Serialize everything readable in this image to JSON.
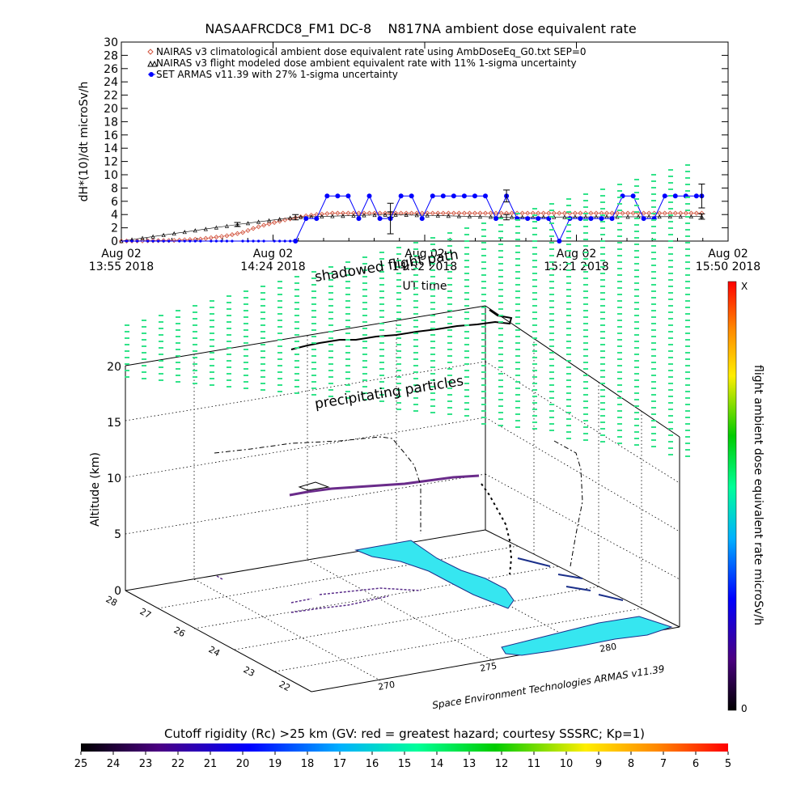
{
  "colors": {
    "nairas_clim": "#d2523c",
    "nairas_flight": "#000000",
    "armas": "#0000ff",
    "precip": "#33e38a",
    "ocean": "#36e6f0",
    "land_outline": "#1a2f8a"
  },
  "chart_data": [
    {
      "type": "line",
      "title": "NASAAFRCDC8_FM1 DC-8    N817NA ambient dose equivalent rate",
      "xlabel": "UT time",
      "ylabel": "dH*(10)/dt microSv/h",
      "ylim": [
        0,
        30
      ],
      "yticks": [
        "0",
        "2",
        "4",
        "6",
        "8",
        "10",
        "12",
        "14",
        "16",
        "18",
        "20",
        "22",
        "24",
        "26",
        "28",
        "30"
      ],
      "xlim": [
        "13:55",
        "15:50"
      ],
      "xticks": [
        {
          "date": "Aug 02",
          "time": "13:55 2018"
        },
        {
          "date": "Aug 02",
          "time": "14:24 2018"
        },
        {
          "date": "Aug 02",
          "time": "14:52 2018"
        },
        {
          "date": "Aug 02",
          "time": "15:21 2018"
        },
        {
          "date": "Aug 02",
          "time": "15:50 2018"
        }
      ],
      "legend_position": "top-left",
      "legend": [
        "NAIRAS v3 climatological ambient dose equivalent rate using AmbDoseEq_G0.txt SEP=0",
        "NAIRAS v3 flight modeled dose ambient equivalent rate with 11% 1-sigma uncertainty",
        "SET ARMAS v11.39 with 27% 1-sigma uncertainty"
      ],
      "series": [
        {
          "name": "NAIRAS v3 climatological ambient dose equivalent rate using AmbDoseEq_G0.txt SEP=0",
          "x": [
            "13:55",
            "14:00",
            "14:05",
            "14:10",
            "14:15",
            "14:18",
            "14:20",
            "14:22",
            "14:24",
            "14:26",
            "14:28",
            "14:30",
            "14:32",
            "14:35",
            "15:45"
          ],
          "values": [
            0.0,
            0.05,
            0.1,
            0.3,
            0.8,
            1.3,
            1.9,
            2.4,
            2.8,
            3.2,
            3.5,
            3.8,
            4.0,
            4.2,
            4.2
          ]
        },
        {
          "name": "NAIRAS v3 flight modeled dose ambient equivalent rate with 11% 1-sigma uncertainty",
          "x": [
            "13:55",
            "14:17",
            "14:28",
            "14:46",
            "15:08",
            "15:45"
          ],
          "values": [
            0.0,
            2.5,
            3.6,
            4.0,
            3.6,
            3.7
          ],
          "err": [
            0.0,
            0.3,
            0.4,
            0.4,
            0.4,
            0.4
          ]
        },
        {
          "name": "SET ARMAS v11.39 with 27% 1-sigma uncertainty",
          "x": [
            "13:55",
            "14:28",
            "14:30",
            "14:32",
            "14:34",
            "14:36",
            "14:38",
            "14:40",
            "14:42",
            "14:44",
            "14:46",
            "14:48",
            "14:50",
            "14:52",
            "14:54",
            "14:56",
            "14:58",
            "15:00",
            "15:02",
            "15:04",
            "15:06",
            "15:08",
            "15:10",
            "15:12",
            "15:14",
            "15:16",
            "15:18",
            "15:20",
            "15:22",
            "15:24",
            "15:26",
            "15:28",
            "15:30",
            "15:32",
            "15:34",
            "15:36",
            "15:38",
            "15:40",
            "15:42",
            "15:44",
            "15:45"
          ],
          "values": [
            0.0,
            0.0,
            3.4,
            3.4,
            6.8,
            6.8,
            6.8,
            3.4,
            6.8,
            3.4,
            3.4,
            6.8,
            6.8,
            3.4,
            6.8,
            6.8,
            6.8,
            6.8,
            6.8,
            6.8,
            3.4,
            6.8,
            3.4,
            3.4,
            3.4,
            3.4,
            0.0,
            3.4,
            3.4,
            3.4,
            3.4,
            3.4,
            6.8,
            6.8,
            3.4,
            3.4,
            6.8,
            6.8,
            6.8,
            6.8,
            6.8
          ],
          "err_at": {
            "14:46": 2.3,
            "15:08": 0.9,
            "15:45": 1.8
          }
        }
      ]
    },
    {
      "type": "scatter",
      "subtype": "3d",
      "zlabel": "Altitude (km)",
      "zticks": [
        "0",
        "5",
        "10",
        "15",
        "20"
      ],
      "lat_ticks": [
        "28",
        "27",
        "26",
        "24",
        "23",
        "22"
      ],
      "lon_ticks": [
        "270",
        "275",
        "280"
      ],
      "annotations": [
        "shadowed flight path",
        "precipitating particles"
      ],
      "credit": "Space Environment Technologies ARMAS v11.39",
      "colorbar": {
        "label": "flight ambient dose equivalent rate microSv/h",
        "max_label": "X",
        "min_label": "0"
      },
      "cutoff_scale": {
        "label": "Cutoff rigidity (Rc) >25 km (GV: red = greatest hazard; courtesy SSSRC; Kp=1)",
        "ticks": [
          "25",
          "24",
          "23",
          "22",
          "21",
          "20",
          "19",
          "18",
          "17",
          "16",
          "15",
          "14",
          "13",
          "12",
          "11",
          "10",
          "9",
          "8",
          "7",
          "6",
          "5"
        ]
      }
    }
  ]
}
